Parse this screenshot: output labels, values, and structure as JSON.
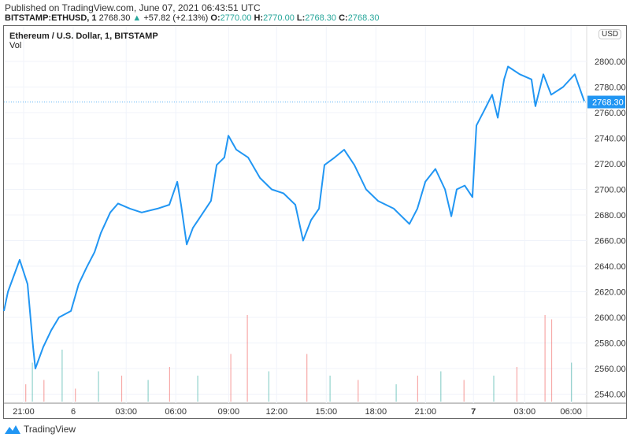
{
  "header": {
    "published": "Published on TradingView.com, June 07, 2021 06:43:51 UTC",
    "symbol": "BITSTAMP:ETHUSD, 1",
    "last": "2768.30",
    "change_arrow": "▲",
    "change": "+57.82 (+2.13%)",
    "o_label": "O:",
    "o": "2770.00",
    "h_label": "H:",
    "h": "2770.00",
    "l_label": "L:",
    "l": "2768.30",
    "c_label": "C:",
    "c": "2768.30"
  },
  "legend": {
    "title": "Ethereum / U.S. Dollar, 1, BITSTAMP",
    "vol": "Vol"
  },
  "currency": "USD",
  "footer": {
    "brand": "TradingView"
  },
  "colors": {
    "line": "#2196f3",
    "up": "#26a69a",
    "down": "#ef5350"
  },
  "chart_data": {
    "type": "line",
    "title": "Ethereum / U.S. Dollar, 1, BITSTAMP",
    "x_unit": "hours since 21:00 (June 5)",
    "xticks": [
      {
        "h": 0,
        "label": "21:00"
      },
      {
        "h": 3,
        "label": "6",
        "bold": false
      },
      {
        "h": 6.2,
        "label": "03:00"
      },
      {
        "h": 9.2,
        "label": "06:00"
      },
      {
        "h": 12.4,
        "label": "09:00"
      },
      {
        "h": 15.3,
        "label": "12:00"
      },
      {
        "h": 18.3,
        "label": "15:00"
      },
      {
        "h": 21.3,
        "label": "18:00"
      },
      {
        "h": 24.3,
        "label": "21:00"
      },
      {
        "h": 27.2,
        "label": "7",
        "bold": true
      },
      {
        "h": 30.3,
        "label": "03:00"
      },
      {
        "h": 33.1,
        "label": "06:00"
      }
    ],
    "yticks": [
      2540,
      2560,
      2580,
      2600,
      2620,
      2640,
      2660,
      2680,
      2700,
      2720,
      2740,
      2760,
      2780,
      2800
    ],
    "ylim": [
      2535,
      2820
    ],
    "last_price": 2768.3,
    "series": [
      {
        "name": "ETHUSD",
        "points": [
          [
            -1.19,
            2605
          ],
          [
            -0.95,
            2620
          ],
          [
            -0.24,
            2645
          ],
          [
            0.24,
            2626
          ],
          [
            0.57,
            2577
          ],
          [
            0.71,
            2560
          ],
          [
            1.19,
            2577
          ],
          [
            1.67,
            2590
          ],
          [
            2.14,
            2600
          ],
          [
            2.86,
            2605
          ],
          [
            3.33,
            2626
          ],
          [
            3.81,
            2639
          ],
          [
            4.29,
            2651
          ],
          [
            4.67,
            2666
          ],
          [
            5.24,
            2682
          ],
          [
            5.71,
            2689
          ],
          [
            6.43,
            2685
          ],
          [
            7.14,
            2682
          ],
          [
            8.1,
            2685
          ],
          [
            8.81,
            2688
          ],
          [
            9.29,
            2706
          ],
          [
            9.52,
            2688
          ],
          [
            9.86,
            2657
          ],
          [
            10.24,
            2670
          ],
          [
            10.71,
            2679
          ],
          [
            11.33,
            2691
          ],
          [
            11.67,
            2719
          ],
          [
            12.14,
            2725
          ],
          [
            12.38,
            2742
          ],
          [
            12.86,
            2731
          ],
          [
            13.57,
            2725
          ],
          [
            14.29,
            2709
          ],
          [
            15,
            2700
          ],
          [
            15.71,
            2697
          ],
          [
            16.43,
            2688
          ],
          [
            16.9,
            2660
          ],
          [
            17.38,
            2676
          ],
          [
            17.86,
            2685
          ],
          [
            18.19,
            2719
          ],
          [
            18.81,
            2725
          ],
          [
            19.38,
            2731
          ],
          [
            20,
            2719
          ],
          [
            20.71,
            2700
          ],
          [
            21.43,
            2691
          ],
          [
            22.38,
            2685
          ],
          [
            23.33,
            2673
          ],
          [
            23.81,
            2685
          ],
          [
            24.29,
            2706
          ],
          [
            24.9,
            2716
          ],
          [
            25.48,
            2700
          ],
          [
            25.86,
            2679
          ],
          [
            26.19,
            2700
          ],
          [
            26.67,
            2703
          ],
          [
            27.14,
            2694
          ],
          [
            27.38,
            2750
          ],
          [
            27.86,
            2762
          ],
          [
            28.33,
            2774
          ],
          [
            28.67,
            2756
          ],
          [
            29.05,
            2786
          ],
          [
            29.29,
            2796
          ],
          [
            30,
            2790
          ],
          [
            30.71,
            2786
          ],
          [
            30.95,
            2765
          ],
          [
            31.43,
            2790
          ],
          [
            31.9,
            2774
          ],
          [
            32.62,
            2780
          ],
          [
            33.33,
            2790
          ],
          [
            33.9,
            2769
          ]
        ]
      }
    ],
    "volume": [
      [
        0.1,
        20,
        0
      ],
      [
        0.5,
        45,
        1
      ],
      [
        1.2,
        25,
        0
      ],
      [
        2.3,
        60,
        1
      ],
      [
        3.1,
        15,
        0
      ],
      [
        4.5,
        35,
        1
      ],
      [
        5.9,
        30,
        0
      ],
      [
        7.5,
        25,
        1
      ],
      [
        8.8,
        40,
        0
      ],
      [
        10.5,
        30,
        1
      ],
      [
        12.5,
        55,
        0
      ],
      [
        13.5,
        100,
        0
      ],
      [
        14.8,
        35,
        1
      ],
      [
        17.1,
        55,
        0
      ],
      [
        18.5,
        30,
        1
      ],
      [
        20.2,
        25,
        0
      ],
      [
        22.5,
        20,
        1
      ],
      [
        23.8,
        30,
        0
      ],
      [
        25.2,
        35,
        1
      ],
      [
        26.6,
        25,
        0
      ],
      [
        28.4,
        30,
        1
      ],
      [
        29.8,
        40,
        0
      ],
      [
        31.5,
        100,
        0
      ],
      [
        31.9,
        95,
        0
      ],
      [
        33.1,
        45,
        1
      ]
    ]
  }
}
